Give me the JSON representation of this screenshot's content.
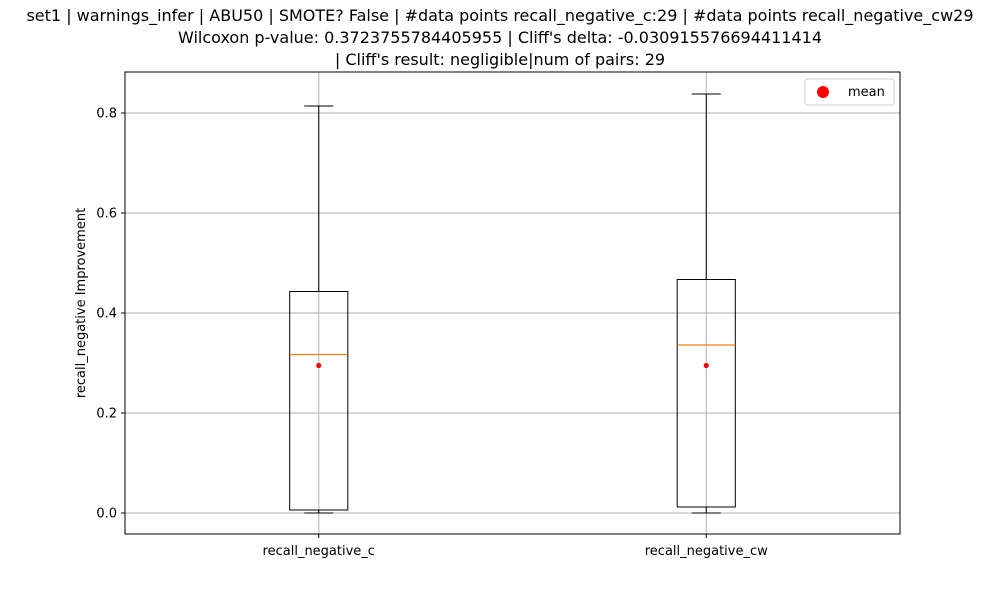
{
  "chart_data": {
    "type": "box",
    "title_lines": [
      "set1 | warnings_infer | ABU50 | SMOTE? False | #data points recall_negative_c:29 | #data points recall_negative_cw29",
      "Wilcoxon p-value: 0.3723755784405955 | Cliff's delta: -0.030915576694411414",
      "| Cliff's result: negligible|num of pairs: 29"
    ],
    "xlabel": "",
    "ylabel": "recall_negative Improvement",
    "ylim": [
      -0.042,
      0.882
    ],
    "yticks": [
      0.0,
      0.2,
      0.4,
      0.6,
      0.8
    ],
    "ytick_labels": [
      "0.0",
      "0.2",
      "0.4",
      "0.6",
      "0.8"
    ],
    "grid": true,
    "legend": {
      "placement": "top-right",
      "entries": [
        {
          "label": "mean",
          "color": "#ff0000",
          "marker": "circle"
        }
      ]
    },
    "categories": [
      "recall_negative_c",
      "recall_negative_cw"
    ],
    "boxes": [
      {
        "name": "recall_negative_c",
        "whisker_low": 0.0,
        "q1": 0.006,
        "median": 0.317,
        "q3": 0.443,
        "whisker_high": 0.814,
        "mean": 0.295
      },
      {
        "name": "recall_negative_cw",
        "whisker_low": 0.0,
        "q1": 0.012,
        "median": 0.336,
        "q3": 0.467,
        "whisker_high": 0.838,
        "mean": 0.295
      }
    ],
    "colors": {
      "box": "#000000",
      "median": "#ff7f0e",
      "mean": "#ff0000",
      "grid": "#b0b0b0"
    }
  }
}
